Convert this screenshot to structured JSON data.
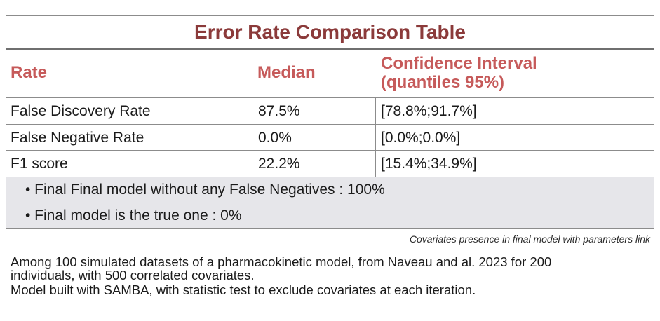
{
  "title": "Error Rate Comparison Table",
  "headers": {
    "rate": "Rate",
    "median": "Median",
    "ci_line1": "Confidence Interval",
    "ci_line2": "(quantiles 95%)"
  },
  "rows": [
    {
      "rate": "False Discovery Rate",
      "median": "87.5%",
      "ci": "[78.8%;91.7%]"
    },
    {
      "rate": "False Negative Rate",
      "median": "0.0%",
      "ci": "[0.0%;0.0%]"
    },
    {
      "rate": "F1 score",
      "median": "22.2%",
      "ci": "[15.4%;34.9%]"
    }
  ],
  "notes": [
    "• Final Final model without any False Negatives : 100%",
    "• Final model is the true one : 0%"
  ],
  "caption": "Covariates presence in final model with parameters link",
  "footer": [
    "Among 100 simulated datasets of a pharmacokinetic model, from Naveau and al. 2023 for 200",
    "individuals, with 500 correlated covariates.",
    "Model built with SAMBA, with statistic test to exclude covariates at each iteration."
  ]
}
